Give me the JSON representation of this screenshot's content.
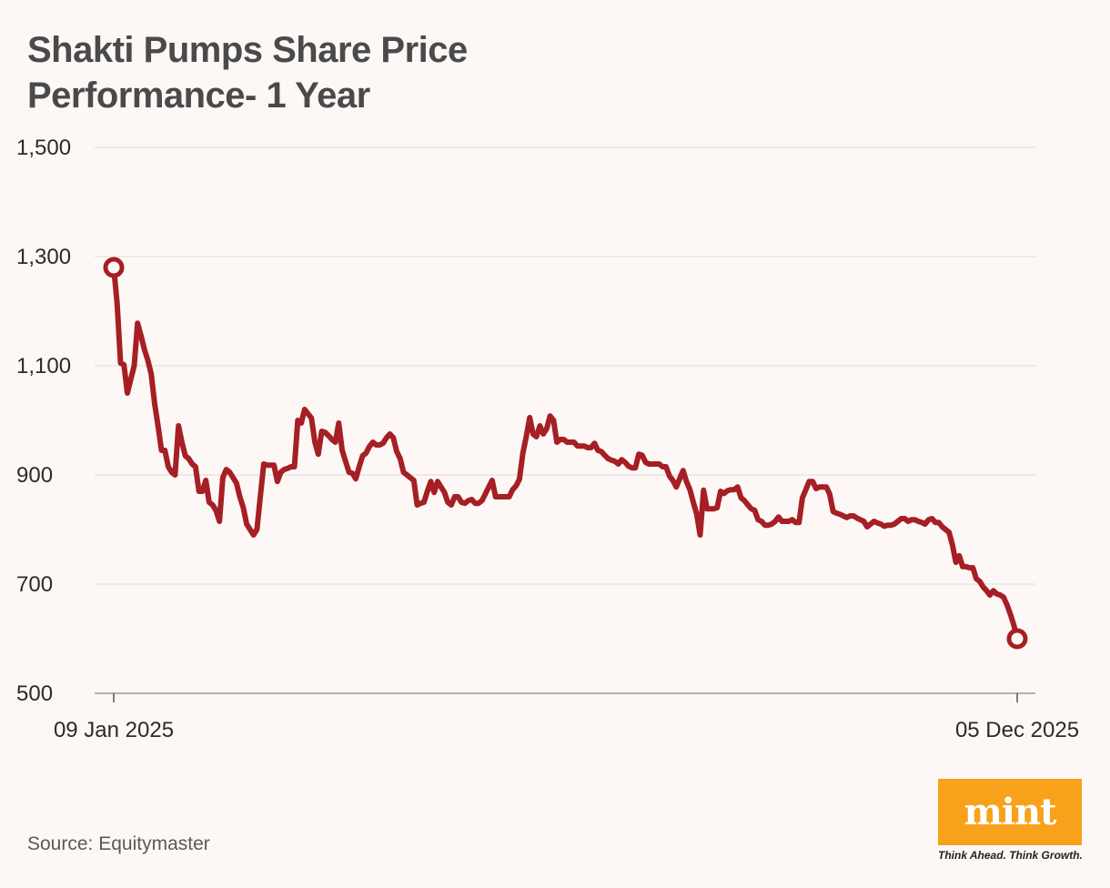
{
  "chart_data": {
    "type": "line",
    "title": "Shakti Pumps Share Price Performance- 1 Year",
    "xlabel": "",
    "ylabel": "",
    "x_tick_labels": [
      "09 Jan 2025",
      "05 Dec 2025"
    ],
    "y_ticks": [
      500,
      700,
      900,
      1100,
      1300,
      1500
    ],
    "y_tick_labels": [
      "500",
      "700",
      "900",
      "1,100",
      "1,300",
      "1,500"
    ],
    "ylim": [
      500,
      1500
    ],
    "grid": true,
    "legend": "none",
    "line_color": "#a51f24",
    "endpoint_markers": true,
    "series": [
      {
        "values": [
          1280,
          1215,
          1105,
          1102,
          1050,
          1075,
          1100,
          1178,
          1155,
          1130,
          1110,
          1085,
          1030,
          990,
          945,
          945,
          915,
          905,
          900,
          990,
          960,
          935,
          930,
          920,
          915,
          870,
          870,
          890,
          850,
          845,
          835,
          815,
          895,
          910,
          905,
          895,
          885,
          860,
          840,
          810,
          800,
          790,
          800,
          860,
          920,
          918,
          918,
          918,
          888,
          905,
          910,
          912,
          915,
          915,
          1000,
          995,
          1020,
          1012,
          1004,
          960,
          938,
          980,
          978,
          972,
          965,
          960,
          995,
          945,
          925,
          905,
          903,
          893,
          915,
          935,
          940,
          952,
          960,
          955,
          955,
          958,
          968,
          975,
          968,
          943,
          930,
          905,
          900,
          895,
          890,
          845,
          848,
          850,
          870,
          888,
          868,
          888,
          878,
          868,
          850,
          845,
          860,
          860,
          850,
          848,
          853,
          855,
          848,
          848,
          853,
          865,
          878,
          890,
          860,
          860,
          860,
          860,
          860,
          873,
          880,
          892,
          940,
          970,
          1005,
          975,
          970,
          990,
          975,
          985,
          1008,
          1000,
          960,
          965,
          965,
          960,
          960,
          960,
          953,
          953,
          953,
          950,
          950,
          958,
          945,
          943,
          936,
          930,
          927,
          925,
          920,
          928,
          923,
          916,
          913,
          913,
          938,
          936,
          923,
          920,
          920,
          920,
          920,
          915,
          915,
          898,
          890,
          878,
          893,
          908,
          888,
          873,
          850,
          828,
          790,
          872,
          838,
          838,
          838,
          840,
          870,
          866,
          871,
          873,
          873,
          878,
          858,
          853,
          845,
          838,
          835,
          818,
          815,
          808,
          808,
          810,
          815,
          823,
          815,
          815,
          815,
          818,
          813,
          813,
          858,
          873,
          888,
          888,
          875,
          878,
          878,
          878,
          865,
          833,
          830,
          828,
          825,
          822,
          825,
          825,
          821,
          818,
          815,
          805,
          810,
          815,
          812,
          810,
          806,
          808,
          808,
          810,
          815,
          820,
          820,
          815,
          818,
          818,
          815,
          813,
          810,
          818,
          820,
          813,
          813,
          805,
          800,
          795,
          772,
          740,
          752,
          732,
          732,
          730,
          730,
          710,
          705,
          695,
          688,
          680,
          688,
          682,
          680,
          676,
          662,
          645,
          625,
          600
        ]
      }
    ]
  },
  "source": "Source: Equitymaster",
  "logo": {
    "name": "mint",
    "tagline": "Think Ahead. Think Growth.",
    "color": "#f7a21a"
  }
}
